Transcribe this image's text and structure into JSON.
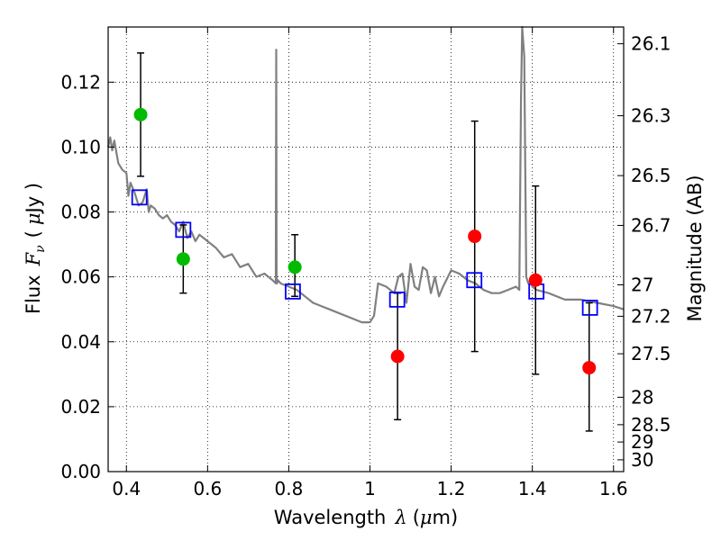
{
  "chart_data": {
    "type": "scatter",
    "xlabel_text": "Wavelength",
    "xlabel_symbol": "λ",
    "xlabel_unit_open": "(",
    "xlabel_unit_mu": "μ",
    "xlabel_unit_rest": "m)",
    "ylabel_text": "Flux",
    "ylabel_symbol": "F",
    "ylabel_sub": "ν",
    "ylabel_unit_open": "(",
    "ylabel_unit_mu": "μ",
    "ylabel_unit_rest": "Jy )",
    "y2label": "Magnitude (AB)",
    "xlim": [
      0.355,
      1.625
    ],
    "ylim": [
      0.0,
      0.137
    ],
    "grid": true,
    "x_ticks": [
      {
        "value": 0.4,
        "label": "0.4"
      },
      {
        "value": 0.6,
        "label": "0.6"
      },
      {
        "value": 0.8,
        "label": "0.8"
      },
      {
        "value": 1.0,
        "label": "1"
      },
      {
        "value": 1.2,
        "label": "1.2"
      },
      {
        "value": 1.4,
        "label": "1.4"
      },
      {
        "value": 1.6,
        "label": "1.6"
      }
    ],
    "y_ticks": [
      {
        "value": 0.0,
        "label": "0.00"
      },
      {
        "value": 0.02,
        "label": "0.02"
      },
      {
        "value": 0.04,
        "label": "0.04"
      },
      {
        "value": 0.06,
        "label": "0.06"
      },
      {
        "value": 0.08,
        "label": "0.08"
      },
      {
        "value": 0.1,
        "label": "0.10"
      },
      {
        "value": 0.12,
        "label": "0.12"
      }
    ],
    "mag_ticks": [
      {
        "value": 26.1,
        "label": "26.1"
      },
      {
        "value": 26.3,
        "label": "26.3"
      },
      {
        "value": 26.5,
        "label": "26.5"
      },
      {
        "value": 26.7,
        "label": "26.7"
      },
      {
        "value": 27.0,
        "label": "27"
      },
      {
        "value": 27.2,
        "label": "27.2"
      },
      {
        "value": 27.5,
        "label": "27.5"
      },
      {
        "value": 28.0,
        "label": "28"
      },
      {
        "value": 28.5,
        "label": "28.5"
      },
      {
        "value": 29.0,
        "label": "29"
      },
      {
        "value": 30.0,
        "label": "30"
      }
    ],
    "series": [
      {
        "name": "model spectrum",
        "kind": "line",
        "color": "#808080",
        "x": [
          0.355,
          0.36,
          0.365,
          0.37,
          0.38,
          0.39,
          0.4,
          0.405,
          0.41,
          0.42,
          0.43,
          0.44,
          0.45,
          0.455,
          0.46,
          0.47,
          0.48,
          0.49,
          0.5,
          0.51,
          0.52,
          0.53,
          0.54,
          0.55,
          0.56,
          0.57,
          0.58,
          0.59,
          0.6,
          0.62,
          0.64,
          0.66,
          0.68,
          0.7,
          0.72,
          0.74,
          0.76,
          0.768,
          0.769,
          0.77,
          0.771,
          0.773,
          0.78,
          0.8,
          0.82,
          0.84,
          0.86,
          0.88,
          0.9,
          0.92,
          0.94,
          0.96,
          0.98,
          1.0,
          1.01,
          1.02,
          1.04,
          1.06,
          1.07,
          1.08,
          1.09,
          1.1,
          1.11,
          1.12,
          1.13,
          1.14,
          1.15,
          1.16,
          1.17,
          1.18,
          1.2,
          1.22,
          1.24,
          1.26,
          1.28,
          1.3,
          1.32,
          1.34,
          1.36,
          1.368,
          1.372,
          1.375,
          1.38,
          1.385,
          1.39,
          1.395,
          1.4,
          1.41,
          1.44,
          1.48,
          1.52,
          1.56,
          1.6,
          1.625
        ],
        "y": [
          0.1,
          0.103,
          0.099,
          0.102,
          0.095,
          0.093,
          0.092,
          0.085,
          0.089,
          0.086,
          0.082,
          0.083,
          0.087,
          0.08,
          0.082,
          0.081,
          0.079,
          0.078,
          0.079,
          0.077,
          0.076,
          0.074,
          0.077,
          0.072,
          0.074,
          0.071,
          0.073,
          0.072,
          0.071,
          0.069,
          0.066,
          0.067,
          0.063,
          0.064,
          0.06,
          0.061,
          0.059,
          0.058,
          0.13,
          0.059,
          0.058,
          0.059,
          0.058,
          0.057,
          0.056,
          0.054,
          0.052,
          0.051,
          0.05,
          0.049,
          0.048,
          0.047,
          0.046,
          0.046,
          0.048,
          0.058,
          0.057,
          0.055,
          0.06,
          0.061,
          0.052,
          0.064,
          0.057,
          0.056,
          0.063,
          0.062,
          0.055,
          0.06,
          0.054,
          0.057,
          0.062,
          0.061,
          0.059,
          0.058,
          0.056,
          0.055,
          0.055,
          0.056,
          0.057,
          0.056,
          0.115,
          0.137,
          0.128,
          0.06,
          0.058,
          0.059,
          0.057,
          0.056,
          0.055,
          0.053,
          0.053,
          0.052,
          0.051,
          0.05
        ]
      },
      {
        "name": "green detections",
        "kind": "points",
        "color": "#00bb00",
        "marker": "circle",
        "x": [
          0.435,
          0.54,
          0.815
        ],
        "y": [
          0.11,
          0.0655,
          0.063
        ]
      },
      {
        "name": "red detections",
        "kind": "points",
        "color": "#ff0000",
        "marker": "circle",
        "x": [
          1.068,
          1.258,
          1.408,
          1.54
        ],
        "y": [
          0.0355,
          0.0725,
          0.059,
          0.032
        ]
      },
      {
        "name": "model photometry",
        "kind": "points",
        "color": "#0000ff",
        "marker": "open-square",
        "x": [
          0.432,
          0.54,
          0.81,
          1.067,
          1.257,
          1.41,
          1.542
        ],
        "y": [
          0.0845,
          0.0745,
          0.0555,
          0.053,
          0.059,
          0.0555,
          0.0505
        ]
      },
      {
        "name": "error bars",
        "kind": "errorbars",
        "color": "#000000",
        "x": [
          0.435,
          0.54,
          0.815,
          1.068,
          1.258,
          1.408,
          1.54
        ],
        "lo": [
          0.091,
          0.055,
          0.054,
          0.016,
          0.037,
          0.03,
          0.0125
        ],
        "hi": [
          0.129,
          0.076,
          0.073,
          0.055,
          0.108,
          0.088,
          0.052
        ]
      }
    ]
  }
}
